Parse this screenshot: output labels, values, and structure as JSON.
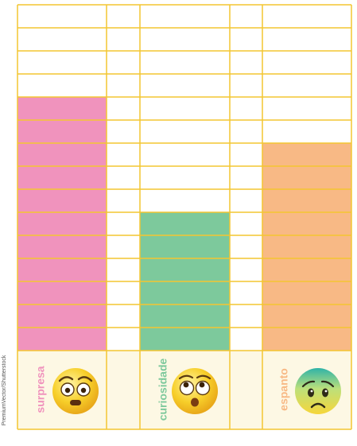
{
  "chart_data": {
    "type": "bar",
    "categories": [
      "surpresa",
      "curiosidade",
      "espanto"
    ],
    "values": [
      11,
      6,
      9
    ],
    "ylim": [
      0,
      15
    ],
    "grid": true,
    "bar_colors": [
      "#f093bd",
      "#7dc99c",
      "#f8b985"
    ],
    "grid_color": "#f4c631",
    "label_band_color": "#fdf8e4",
    "emojis": [
      {
        "category": "surpresa",
        "icon": "surprised-face-emoji",
        "color": "#f5c518"
      },
      {
        "category": "curiosidade",
        "icon": "eyes-up-face-emoji",
        "color": "#f5c518"
      },
      {
        "category": "espanto",
        "icon": "anxious-face-emoji",
        "color": "#f3d23a",
        "accent": "#3ab7a6"
      }
    ]
  },
  "credit": "PremiumVector/Shutterstock"
}
